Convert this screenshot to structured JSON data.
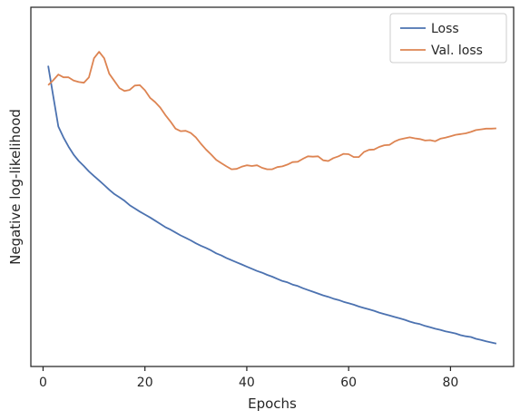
{
  "chart_data": {
    "type": "line",
    "title": "",
    "xlabel": "Epochs",
    "ylabel": "Negative log-likelihood",
    "xlim": [
      -2.4,
      92.4
    ],
    "ylim": [
      0.0,
      1.0
    ],
    "xticks": [
      0,
      20,
      40,
      60,
      80
    ],
    "yticks_shown": false,
    "grid": false,
    "legend": "top-right",
    "series": [
      {
        "name": "Loss",
        "color": "#4c72b0",
        "x": [
          1,
          2,
          3,
          4,
          5,
          6,
          7,
          8,
          9,
          10,
          11,
          12,
          13,
          14,
          15,
          16,
          17,
          18,
          19,
          20,
          21,
          22,
          23,
          24,
          25,
          26,
          27,
          28,
          29,
          30,
          31,
          32,
          33,
          34,
          35,
          36,
          37,
          38,
          39,
          40,
          41,
          42,
          43,
          44,
          45,
          46,
          47,
          48,
          49,
          50,
          51,
          52,
          53,
          54,
          55,
          56,
          57,
          58,
          59,
          60,
          61,
          62,
          63,
          64,
          65,
          66,
          67,
          68,
          69,
          70,
          71,
          72,
          73,
          74,
          75,
          76,
          77,
          78,
          79,
          80,
          81,
          82,
          83,
          84,
          85,
          86,
          87,
          88,
          89
        ],
        "values": [
          0.837,
          0.752,
          0.668,
          0.638,
          0.612,
          0.59,
          0.572,
          0.558,
          0.543,
          0.53,
          0.518,
          0.505,
          0.492,
          0.48,
          0.471,
          0.461,
          0.449,
          0.44,
          0.431,
          0.423,
          0.415,
          0.406,
          0.397,
          0.388,
          0.381,
          0.373,
          0.365,
          0.358,
          0.351,
          0.343,
          0.336,
          0.33,
          0.323,
          0.315,
          0.309,
          0.302,
          0.296,
          0.29,
          0.284,
          0.278,
          0.272,
          0.266,
          0.261,
          0.255,
          0.25,
          0.244,
          0.238,
          0.234,
          0.228,
          0.224,
          0.218,
          0.213,
          0.208,
          0.203,
          0.198,
          0.194,
          0.189,
          0.185,
          0.18,
          0.176,
          0.172,
          0.167,
          0.163,
          0.159,
          0.155,
          0.15,
          0.146,
          0.142,
          0.138,
          0.134,
          0.13,
          0.125,
          0.121,
          0.118,
          0.113,
          0.109,
          0.105,
          0.102,
          0.098,
          0.095,
          0.092,
          0.087,
          0.084,
          0.082,
          0.077,
          0.074,
          0.07,
          0.067,
          0.064
        ]
      },
      {
        "name": "Val. loss",
        "color": "#dd8452",
        "x": [
          1,
          2,
          3,
          4,
          5,
          6,
          7,
          8,
          9,
          10,
          11,
          12,
          13,
          14,
          15,
          16,
          17,
          18,
          19,
          20,
          21,
          22,
          23,
          24,
          25,
          26,
          27,
          28,
          29,
          30,
          31,
          32,
          33,
          34,
          35,
          36,
          37,
          38,
          39,
          40,
          41,
          42,
          43,
          44,
          45,
          46,
          47,
          48,
          49,
          50,
          51,
          52,
          53,
          54,
          55,
          56,
          57,
          58,
          59,
          60,
          61,
          62,
          63,
          64,
          65,
          66,
          67,
          68,
          69,
          70,
          71,
          72,
          73,
          74,
          75,
          76,
          77,
          78,
          79,
          80,
          81,
          82,
          83,
          84,
          85,
          86,
          87,
          88,
          89
        ],
        "values": [
          0.783,
          0.797,
          0.813,
          0.805,
          0.805,
          0.796,
          0.792,
          0.79,
          0.805,
          0.858,
          0.876,
          0.858,
          0.815,
          0.795,
          0.775,
          0.767,
          0.77,
          0.782,
          0.783,
          0.769,
          0.748,
          0.736,
          0.721,
          0.7,
          0.682,
          0.662,
          0.655,
          0.656,
          0.65,
          0.638,
          0.62,
          0.604,
          0.59,
          0.575,
          0.566,
          0.557,
          0.549,
          0.55,
          0.556,
          0.56,
          0.558,
          0.56,
          0.553,
          0.549,
          0.549,
          0.555,
          0.557,
          0.562,
          0.569,
          0.57,
          0.578,
          0.585,
          0.584,
          0.585,
          0.574,
          0.572,
          0.58,
          0.585,
          0.592,
          0.591,
          0.583,
          0.583,
          0.597,
          0.603,
          0.604,
          0.611,
          0.616,
          0.617,
          0.626,
          0.632,
          0.635,
          0.638,
          0.635,
          0.633,
          0.629,
          0.63,
          0.627,
          0.634,
          0.637,
          0.641,
          0.645,
          0.647,
          0.649,
          0.653,
          0.658,
          0.66,
          0.662,
          0.662,
          0.663
        ]
      }
    ]
  }
}
